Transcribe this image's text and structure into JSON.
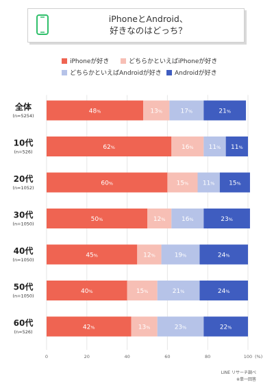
{
  "title": {
    "line1": "iPhoneとAndroid、",
    "line2": "好きなのはどっち？"
  },
  "icon": "smartphone-icon",
  "legend": [
    {
      "label": "iPhoneが好き",
      "color": "#ef6452"
    },
    {
      "label": "どちらかといえばiPhoneが好き",
      "color": "#f7bfb5"
    },
    {
      "label": "どちらかといえばAndroidが好き",
      "color": "#b6c3e8"
    },
    {
      "label": "Androidが好き",
      "color": "#3f5dc0"
    }
  ],
  "chart_data": {
    "type": "bar",
    "orientation": "horizontal",
    "stacked": true,
    "categories": [
      "全体",
      "10代",
      "20代",
      "30代",
      "40代",
      "50代",
      "60代"
    ],
    "sample_sizes": [
      "(n=5254)",
      "(n=526)",
      "(n=1052)",
      "(n=1050)",
      "(n=1050)",
      "(n=1050)",
      "(n=526)"
    ],
    "series": [
      {
        "name": "iPhoneが好き",
        "values": [
          48,
          62,
          60,
          50,
          45,
          40,
          42
        ]
      },
      {
        "name": "どちらかといえばiPhoneが好き",
        "values": [
          13,
          16,
          15,
          12,
          12,
          15,
          13
        ]
      },
      {
        "name": "どちらかといえばAndroidが好き",
        "values": [
          17,
          11,
          11,
          16,
          19,
          21,
          23
        ]
      },
      {
        "name": "Androidが好き",
        "values": [
          21,
          11,
          15,
          23,
          24,
          24,
          22
        ]
      }
    ],
    "value_suffix": "%",
    "xlim": [
      0,
      100
    ],
    "xticks": [
      0,
      20,
      40,
      60,
      80,
      100
    ],
    "xunit": "(%)",
    "grid": true
  },
  "footnotes": [
    "LINE リサーチ調べ",
    "※単一回答"
  ]
}
